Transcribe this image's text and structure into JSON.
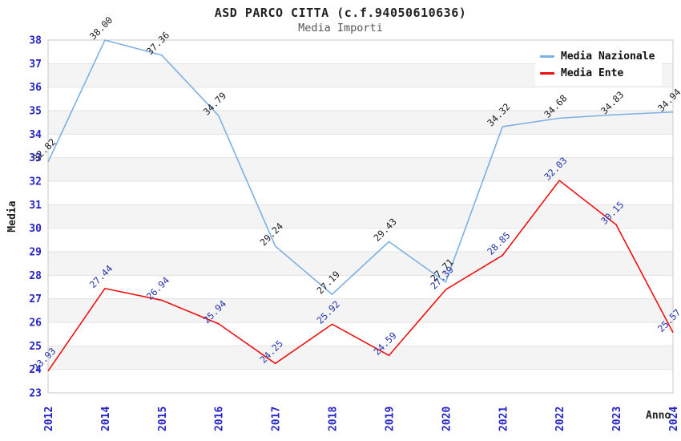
{
  "chart_data": {
    "type": "line",
    "title": "ASD PARCO CITTA (c.f.94050610636)",
    "subtitle": "Media Importi",
    "xlabel": "Anno",
    "ylabel": "Media",
    "categories": [
      "2012",
      "2014",
      "2015",
      "2016",
      "2017",
      "2018",
      "2019",
      "2020",
      "2021",
      "2022",
      "2023",
      "2024"
    ],
    "ylim": [
      23,
      38
    ],
    "ytick_step": 1,
    "grid": "horizontal gridlines with alternating shaded bands",
    "legend_position": "top-right",
    "series": [
      {
        "name": "Media Nazionale",
        "color": "#7cb0e2",
        "label_color": "#1a1a1a",
        "values": [
          32.82,
          38.0,
          37.36,
          34.79,
          29.24,
          27.19,
          29.43,
          27.71,
          34.32,
          34.68,
          34.83,
          34.94
        ]
      },
      {
        "name": "Media Ente",
        "color": "#ee1010",
        "label_color": "#2233aa",
        "values": [
          23.93,
          27.44,
          26.94,
          25.94,
          24.25,
          25.92,
          24.59,
          27.39,
          28.85,
          32.03,
          30.15,
          25.57
        ]
      }
    ],
    "axis_tick_color": "#2424c8",
    "band_color": "#f4f4f4",
    "gridline_color": "#e2e2e2",
    "plot_border_color": "#c9c9c9"
  }
}
